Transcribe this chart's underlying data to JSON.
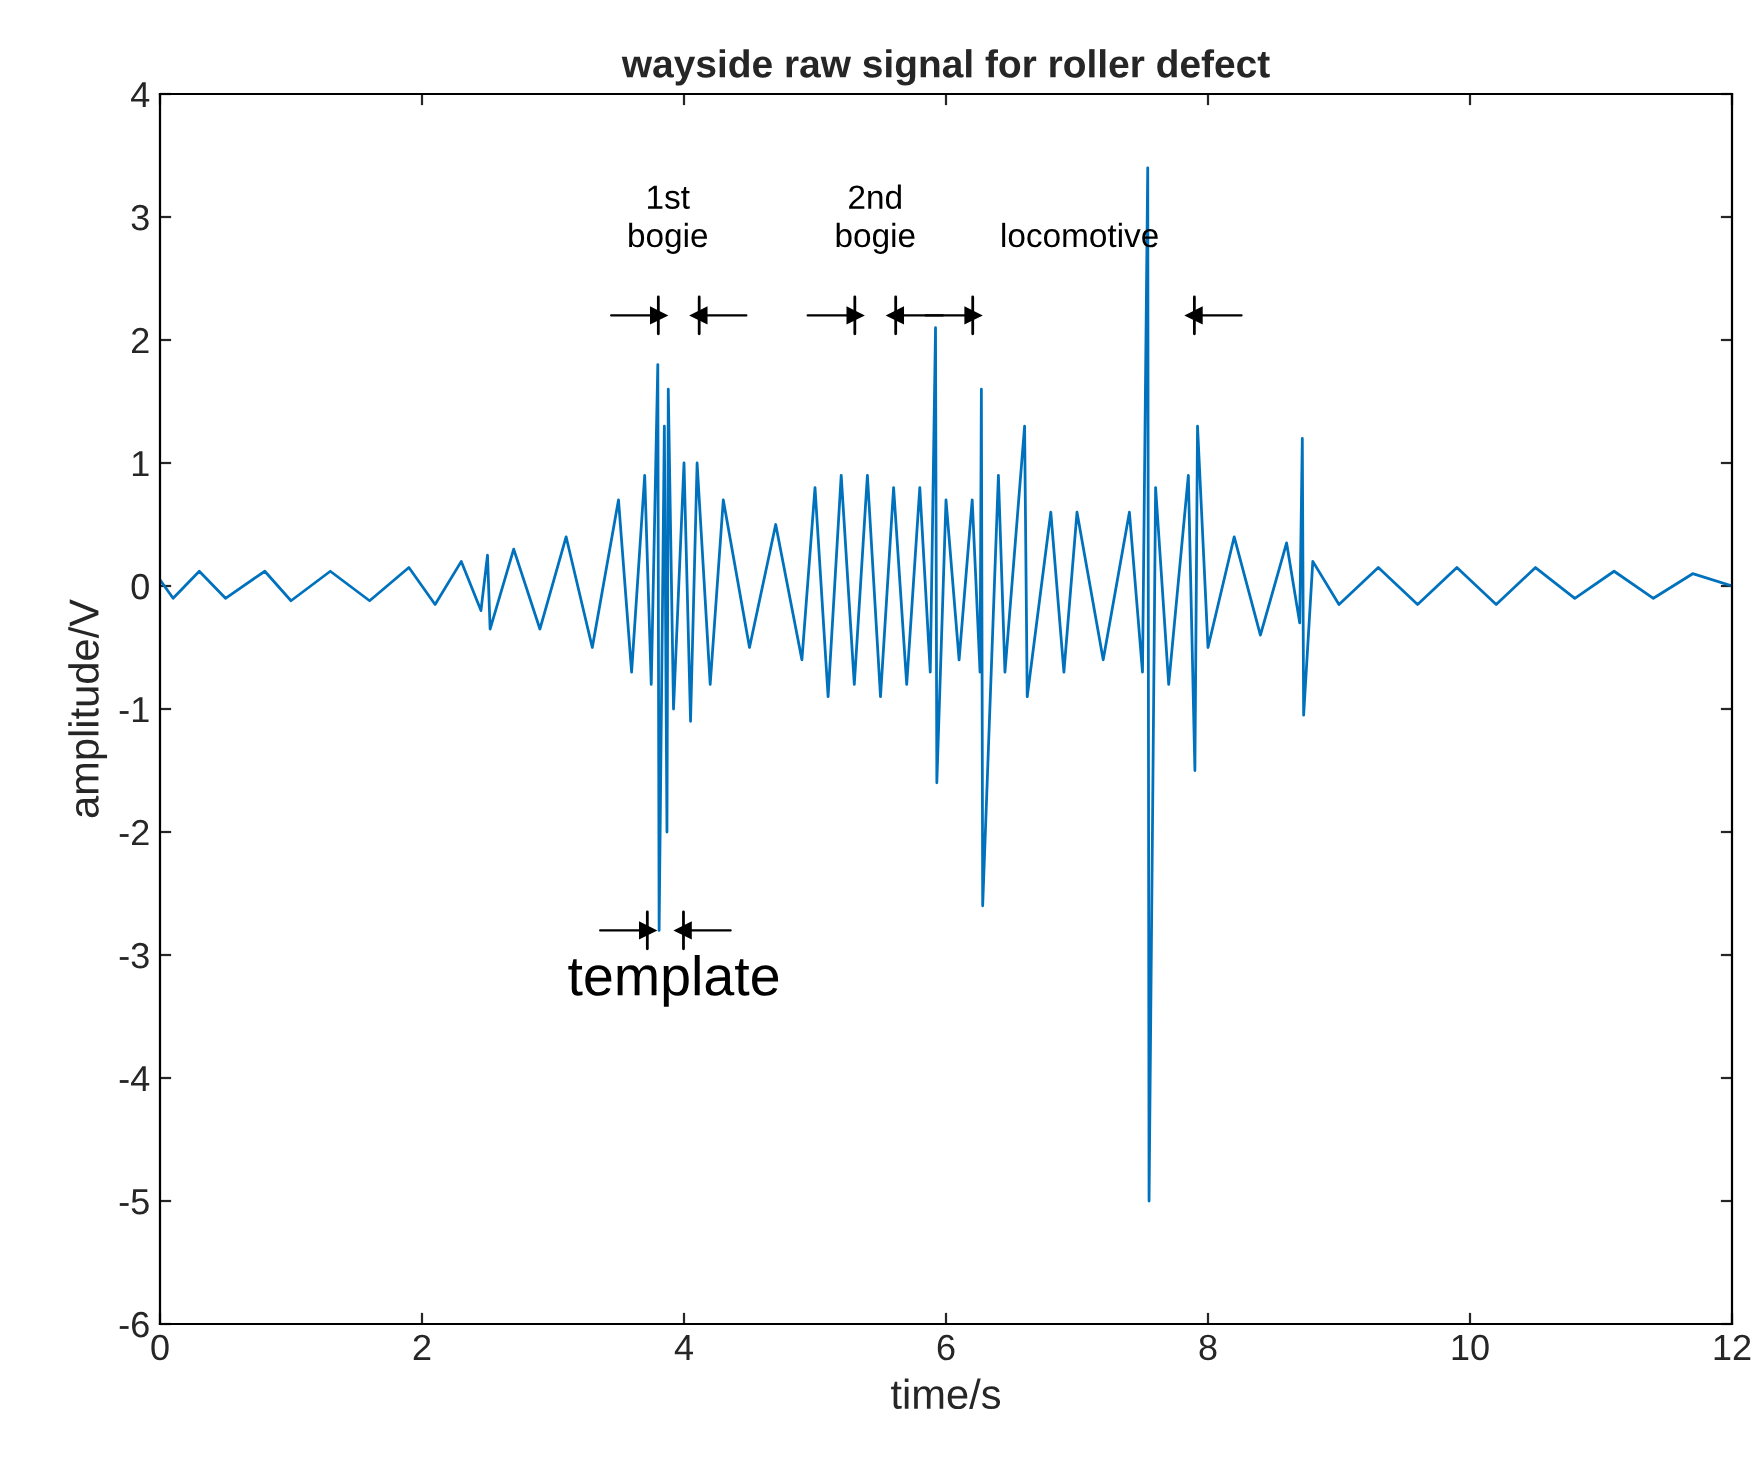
{
  "chart_data": {
    "type": "line",
    "title": "wayside raw signal for roller defect",
    "xlabel": "time/s",
    "ylabel": "amplitude/V",
    "xlim": [
      0,
      12
    ],
    "xticks": [
      0,
      2,
      4,
      6,
      8,
      10,
      12
    ],
    "ylim": [
      -6,
      4
    ],
    "yticks": [
      -6,
      -5,
      -4,
      -3,
      -2,
      -1,
      0,
      1,
      2,
      3,
      4
    ],
    "grid": false,
    "annotations": [
      "1st\nbogie",
      "2nd\nbogie",
      "locomotive",
      "template"
    ],
    "series": [
      {
        "color": "#0072bd",
        "x": [
          0,
          0.1,
          0.3,
          0.5,
          0.8,
          1.0,
          1.3,
          1.6,
          1.9,
          2.1,
          2.3,
          2.45,
          2.5,
          2.52,
          2.7,
          2.9,
          3.1,
          3.3,
          3.5,
          3.6,
          3.7,
          3.75,
          3.8,
          3.81,
          3.85,
          3.87,
          3.88,
          3.92,
          4.0,
          4.05,
          4.1,
          4.2,
          4.3,
          4.5,
          4.7,
          4.9,
          5.0,
          5.1,
          5.2,
          5.3,
          5.4,
          5.5,
          5.6,
          5.7,
          5.8,
          5.88,
          5.92,
          5.93,
          6.0,
          6.1,
          6.2,
          6.26,
          6.27,
          6.28,
          6.4,
          6.45,
          6.6,
          6.62,
          6.8,
          6.9,
          7.0,
          7.2,
          7.4,
          7.5,
          7.54,
          7.55,
          7.6,
          7.7,
          7.85,
          7.9,
          7.92,
          8.0,
          8.2,
          8.4,
          8.6,
          8.7,
          8.72,
          8.73,
          8.8,
          9.0,
          9.3,
          9.6,
          9.9,
          10.2,
          10.5,
          10.8,
          11.1,
          11.4,
          11.7,
          12.0
        ],
        "values": [
          0.05,
          -0.1,
          0.12,
          -0.1,
          0.12,
          -0.12,
          0.12,
          -0.12,
          0.15,
          -0.15,
          0.2,
          -0.2,
          0.25,
          -0.35,
          0.3,
          -0.35,
          0.4,
          -0.5,
          0.7,
          -0.7,
          0.9,
          -0.8,
          1.8,
          -2.8,
          1.3,
          -2.0,
          1.6,
          -1.0,
          1.0,
          -1.1,
          1.0,
          -0.8,
          0.7,
          -0.5,
          0.5,
          -0.6,
          0.8,
          -0.9,
          0.9,
          -0.8,
          0.9,
          -0.9,
          0.8,
          -0.8,
          0.8,
          -0.7,
          2.1,
          -1.6,
          0.7,
          -0.6,
          0.7,
          -0.7,
          1.6,
          -2.6,
          0.9,
          -0.7,
          1.3,
          -0.9,
          0.6,
          -0.7,
          0.6,
          -0.6,
          0.6,
          -0.7,
          3.4,
          -5.0,
          0.8,
          -0.8,
          0.9,
          -1.5,
          1.3,
          -0.5,
          0.4,
          -0.4,
          0.35,
          -0.3,
          1.2,
          -1.05,
          0.2,
          -0.15,
          0.15,
          -0.15,
          0.15,
          -0.15,
          0.15,
          -0.1,
          0.12,
          -0.1,
          0.1,
          0.0
        ]
      }
    ]
  }
}
